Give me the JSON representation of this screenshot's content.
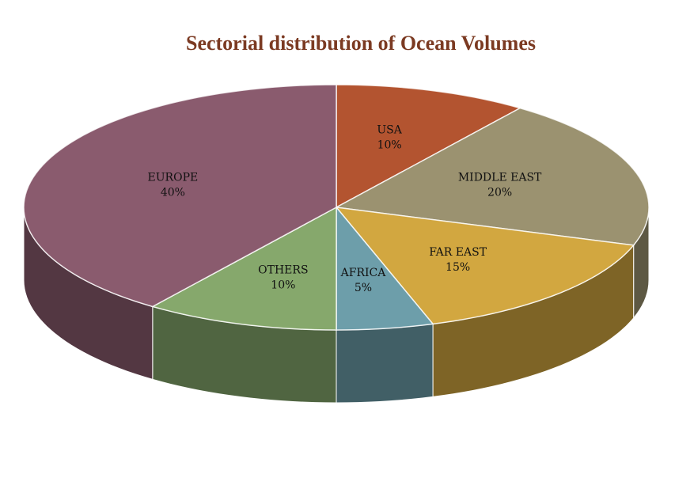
{
  "chart_data": {
    "type": "pie3d",
    "title": "Sectorial distribution of Ocean Volumes",
    "categories": [
      "USA",
      "MIDDLE EAST",
      "FAR EAST",
      "AFRICA",
      "OTHERS",
      "EUROPE"
    ],
    "values": [
      10,
      20,
      15,
      5,
      10,
      40
    ],
    "value_labels": [
      "10%",
      "20%",
      "15%",
      "5%",
      "10%",
      "40%"
    ],
    "colors": [
      "#b35430",
      "#9b9270",
      "#d2a740",
      "#6d9eaa",
      "#86a86c",
      "#8a5b6e"
    ]
  }
}
